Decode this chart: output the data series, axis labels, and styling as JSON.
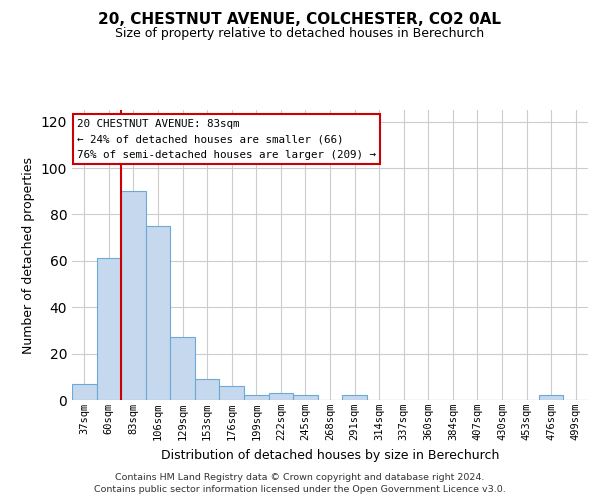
{
  "title1": "20, CHESTNUT AVENUE, COLCHESTER, CO2 0AL",
  "title2": "Size of property relative to detached houses in Berechurch",
  "xlabel": "Distribution of detached houses by size in Berechurch",
  "ylabel": "Number of detached properties",
  "bar_labels": [
    "37sqm",
    "60sqm",
    "83sqm",
    "106sqm",
    "129sqm",
    "153sqm",
    "176sqm",
    "199sqm",
    "222sqm",
    "245sqm",
    "268sqm",
    "291sqm",
    "314sqm",
    "337sqm",
    "360sqm",
    "384sqm",
    "407sqm",
    "430sqm",
    "453sqm",
    "476sqm",
    "499sqm"
  ],
  "bar_values": [
    7,
    61,
    90,
    75,
    27,
    9,
    6,
    2,
    3,
    2,
    0,
    2,
    0,
    0,
    0,
    0,
    0,
    0,
    0,
    2,
    0
  ],
  "bar_color": "#c5d8ed",
  "bar_edge_color": "#6aaad4",
  "vline_index": 2,
  "vline_color": "#cc0000",
  "annotation_line1": "20 CHESTNUT AVENUE: 83sqm",
  "annotation_line2": "← 24% of detached houses are smaller (66)",
  "annotation_line3": "76% of semi-detached houses are larger (209) →",
  "annotation_box_color": "#ffffff",
  "annotation_box_edge": "#cc0000",
  "ylim": [
    0,
    125
  ],
  "yticks": [
    0,
    20,
    40,
    60,
    80,
    100,
    120
  ],
  "footer1": "Contains HM Land Registry data © Crown copyright and database right 2024.",
  "footer2": "Contains public sector information licensed under the Open Government Licence v3.0.",
  "bg_color": "#ffffff",
  "grid_color": "#cccccc",
  "title1_fontsize": 11,
  "title2_fontsize": 9
}
